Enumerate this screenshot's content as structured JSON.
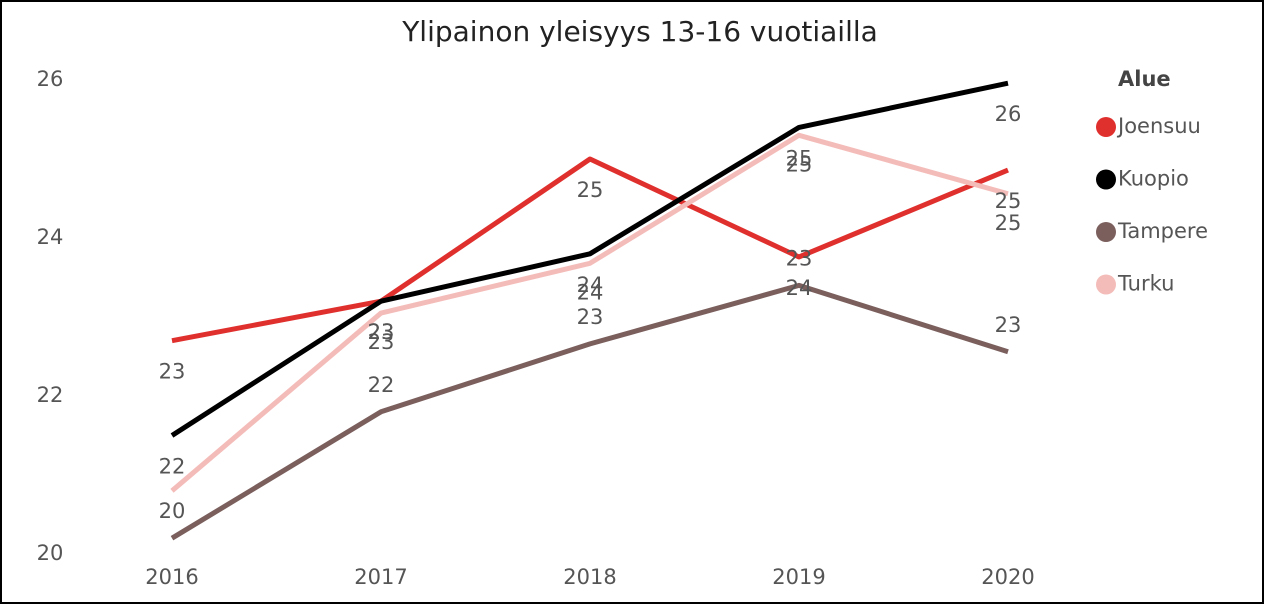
{
  "chart_data": {
    "type": "line",
    "title": "Ylipainon yleisyys 13-16 vuotiailla",
    "x": [
      "2016",
      "2017",
      "2018",
      "2019",
      "2020"
    ],
    "legend_title": "Alue",
    "legend": "right",
    "series": [
      {
        "name": "Joensuu",
        "color": "#e0302e",
        "values": [
          22.7,
          23.2,
          25.0,
          23.76,
          24.86
        ],
        "value_labels": [
          "23",
          "23",
          "25",
          "24",
          "25"
        ]
      },
      {
        "name": "Kuopio",
        "color": "#000000",
        "values": [
          21.5,
          23.2,
          23.8,
          25.4,
          25.96
        ],
        "value_labels": [
          "22",
          "23",
          "24",
          "25",
          "26"
        ]
      },
      {
        "name": "Tampere",
        "color": "#7a5f5d",
        "values": [
          20.2,
          21.8,
          22.66,
          23.4,
          22.56
        ],
        "value_labels": [
          "20",
          "22",
          "23",
          "23",
          "23"
        ]
      },
      {
        "name": "Turku",
        "color": "#f4bcb9",
        "values": [
          20.8,
          23.05,
          23.68,
          25.3,
          24.56
        ],
        "value_labels": [
          null,
          "23",
          "24",
          "25",
          "25"
        ]
      }
    ],
    "ylim": [
      20,
      26
    ],
    "yticks": [
      20,
      22,
      24,
      26
    ]
  }
}
